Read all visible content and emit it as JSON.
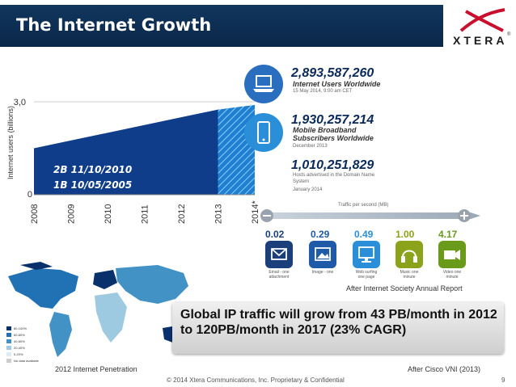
{
  "slide": {
    "title": "The Internet Growth",
    "logo": "XTERA",
    "logo_mark": "®",
    "page_number": "9",
    "footer": "© 2014 Xtera Communications, Inc. Proprietary & Confidential"
  },
  "chart_data": {
    "type": "area",
    "ylabel": "Internet users (billions)",
    "ytick_labels": [
      "3,0",
      "0"
    ],
    "ylim": [
      0,
      3.0
    ],
    "categories": [
      "2008",
      "2009",
      "2010",
      "2011",
      "2012",
      "2013",
      "2014*"
    ],
    "series": [
      {
        "name": "Internet users",
        "values": [
          1.5,
          1.75,
          2.0,
          2.25,
          2.5,
          2.75,
          2.9
        ]
      }
    ],
    "projected_from": "2013",
    "annotations": [
      "2B 11/10/2010",
      "1B 10/05/2005"
    ]
  },
  "stats": [
    {
      "value": "2,893,587,260",
      "label": "Internet Users Worldwide",
      "sub": "15 May 2014, 9:00 am CET",
      "icon": "laptop-icon",
      "color": "#2a6fbf"
    },
    {
      "value": "1,930,257,214",
      "label": "Mobile Broadband Subscribers Worldwide",
      "sub": "December 2013",
      "icon": "smartphone-icon",
      "color": "#2a8fd8"
    },
    {
      "value": "1,010,251,829",
      "label": "Hosts advertised in the Domain Name System",
      "sub": "January 2014",
      "icon": "",
      "color": "#1a4a8a"
    }
  ],
  "traffic": {
    "scale_label": "Traffic per second (MB)",
    "items": [
      {
        "value": "0.02",
        "label": "Email - one attachment",
        "color": "#1a3f7a",
        "icon": "email-icon"
      },
      {
        "value": "0.29",
        "label": "Image - one",
        "color": "#1f5aa8",
        "icon": "image-icon"
      },
      {
        "value": "0.49",
        "label": "Web surfing one page",
        "color": "#2a8fd8",
        "icon": "monitor-icon"
      },
      {
        "value": "1.00",
        "label": "Music one minute",
        "color": "#8aa31a",
        "icon": "headphones-icon"
      },
      {
        "value": "4.17",
        "label": "Video one minute",
        "color": "#6a9a1a",
        "icon": "video-camera-icon"
      }
    ],
    "source": "After Internet Society Annual Report"
  },
  "map": {
    "caption": "2012 Internet Penetration",
    "legend": [
      "80-100%",
      "60-80%",
      "40-60%",
      "20-40%",
      "0-20%",
      "No data available"
    ],
    "legend_colors": [
      "#08306b",
      "#2171b5",
      "#4292c6",
      "#9ecae1",
      "#deebf7",
      "#cccccc"
    ]
  },
  "quote": {
    "text": "Global IP traffic will grow from 43 PB/month in 2012 to 120PB/month in 2017 (23% CAGR)",
    "source": "After Cisco VNI (2013)"
  }
}
